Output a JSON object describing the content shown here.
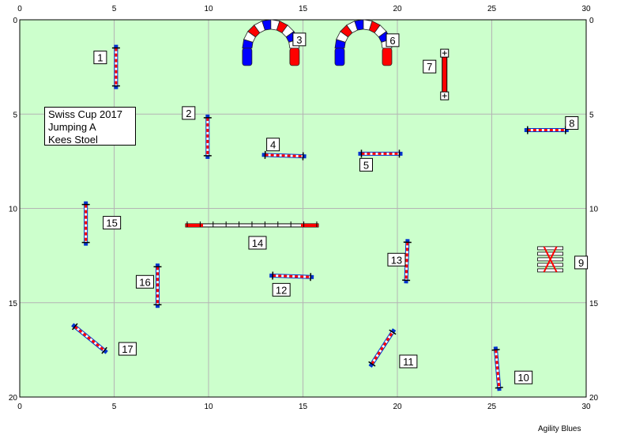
{
  "course": {
    "title_lines": [
      "Swiss Cup 2017",
      "Jumping A",
      "Kees Stoel"
    ],
    "footer": "Agility Blues",
    "x_ticks": [
      "0",
      "5",
      "10",
      "15",
      "20",
      "25",
      "30"
    ],
    "y_ticks": [
      "0",
      "5",
      "10",
      "15",
      "20"
    ]
  },
  "colors": {
    "field": "#ccffcc",
    "grid": "#b4b4b4",
    "pole_red": "#ff0000",
    "wing_blue": "#0033cc",
    "tunnel_red": "#ff0000",
    "tunnel_blue": "#0000ff"
  },
  "obstacles": [
    {
      "number": "1",
      "kind": "jump",
      "x": 5.1,
      "y": 2.5,
      "angle": 90
    },
    {
      "number": "2",
      "kind": "jump",
      "x": 9.95,
      "y": 6.2,
      "angle": 90
    },
    {
      "number": "3",
      "kind": "tunnel",
      "x": 13.3,
      "y": 1.0
    },
    {
      "number": "4",
      "kind": "jump",
      "x": 14.0,
      "y": 7.2,
      "angle": 2
    },
    {
      "number": "5",
      "kind": "jump",
      "x": 19.1,
      "y": 7.1,
      "angle": 0
    },
    {
      "number": "6",
      "kind": "tunnel",
      "x": 18.2,
      "y": 1.0
    },
    {
      "number": "7",
      "kind": "long-jump",
      "x": 22.5,
      "y": 2.9,
      "angle": 90
    },
    {
      "number": "8",
      "kind": "jump",
      "x": 27.9,
      "y": 5.85,
      "angle": 0
    },
    {
      "number": "9",
      "kind": "broad-jump",
      "x": 28.1,
      "y": 12.7
    },
    {
      "number": "10",
      "kind": "jump",
      "x": 25.3,
      "y": 18.5,
      "angle": 85
    },
    {
      "number": "11",
      "kind": "jump",
      "x": 19.2,
      "y": 17.4,
      "angle": -57
    },
    {
      "number": "12",
      "kind": "jump",
      "x": 14.4,
      "y": 13.6,
      "angle": 2
    },
    {
      "number": "13",
      "kind": "jump",
      "x": 20.5,
      "y": 12.8,
      "angle": 92
    },
    {
      "number": "14",
      "kind": "dogwalk",
      "x": 12.3,
      "y": 10.9,
      "angle": 0
    },
    {
      "number": "15",
      "kind": "jump",
      "x": 3.5,
      "y": 10.8,
      "angle": 90
    },
    {
      "number": "16",
      "kind": "jump",
      "x": 7.3,
      "y": 14.1,
      "angle": 90
    },
    {
      "number": "17",
      "kind": "jump",
      "x": 3.7,
      "y": 16.9,
      "angle": 39
    }
  ]
}
